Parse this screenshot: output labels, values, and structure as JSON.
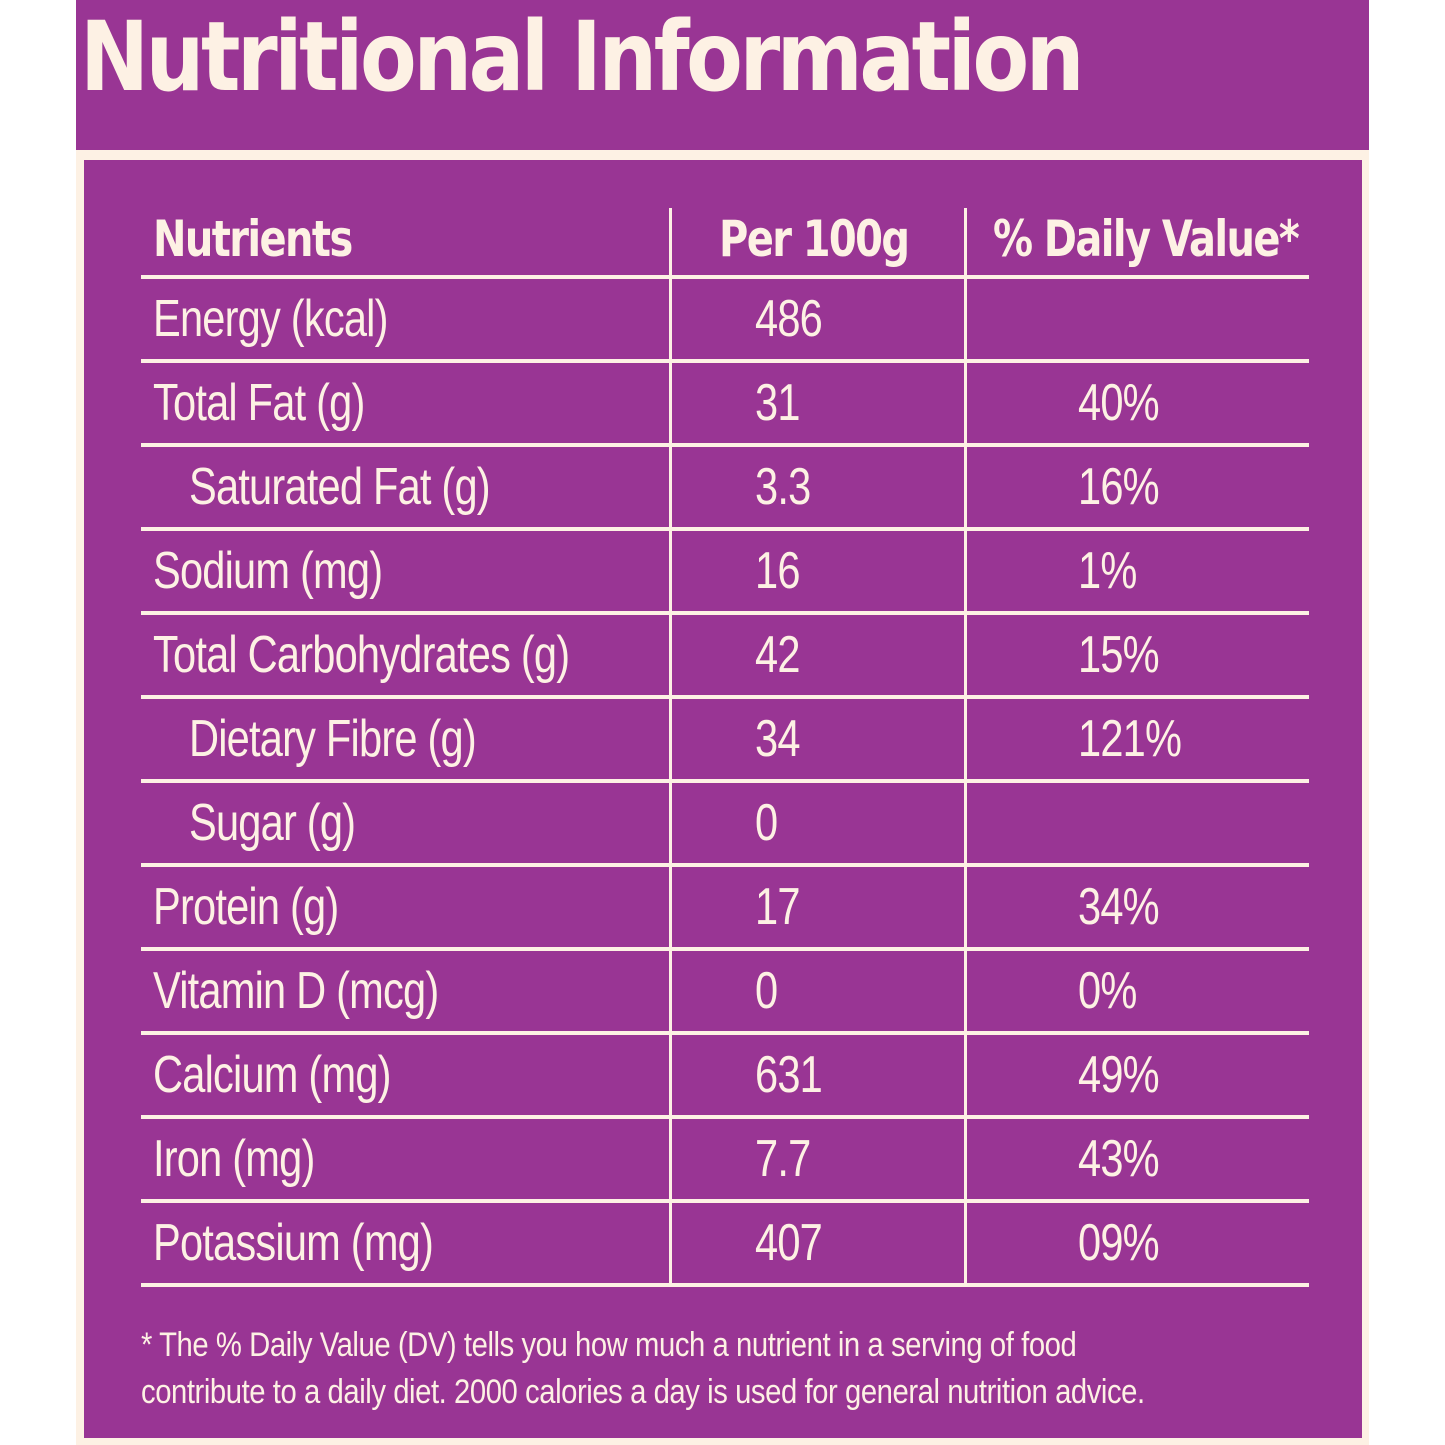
{
  "title": "Nutritional Information",
  "colors": {
    "panel": "#993594",
    "text": "#fdf1e4"
  },
  "table": {
    "headers": {
      "nutrient": "Nutrients",
      "per100g": "Per 100g",
      "daily_value": "% Daily Value*"
    },
    "rows": [
      {
        "nutrient": "Energy (kcal)",
        "per100g": "486",
        "daily_value": ""
      },
      {
        "nutrient": "Total Fat (g)",
        "per100g": "31",
        "daily_value": "40%"
      },
      {
        "nutrient": "Saturated Fat (g)",
        "per100g": "3.3",
        "daily_value": "16%"
      },
      {
        "nutrient": "Sodium (mg)",
        "per100g": "16",
        "daily_value": "1%"
      },
      {
        "nutrient": "Total Carbohydrates (g)",
        "per100g": "42",
        "daily_value": "15%"
      },
      {
        "nutrient": "Dietary Fibre (g)",
        "per100g": "34",
        "daily_value": "121%"
      },
      {
        "nutrient": "Sugar (g)",
        "per100g": "0",
        "daily_value": ""
      },
      {
        "nutrient": "Protein (g)",
        "per100g": "17",
        "daily_value": "34%"
      },
      {
        "nutrient": "Vitamin D (mcg)",
        "per100g": "0",
        "daily_value": "0%"
      },
      {
        "nutrient": "Calcium (mg)",
        "per100g": "631",
        "daily_value": "49%"
      },
      {
        "nutrient": "Iron (mg)",
        "per100g": "7.7",
        "daily_value": "43%"
      },
      {
        "nutrient": "Potassium (mg)",
        "per100g": "407",
        "daily_value": "09%"
      }
    ]
  },
  "footnote": "* The % Daily Value (DV) tells you how much a nutrient in a serving of food contribute to a daily diet. 2000 calories a day is used for general nutrition advice."
}
